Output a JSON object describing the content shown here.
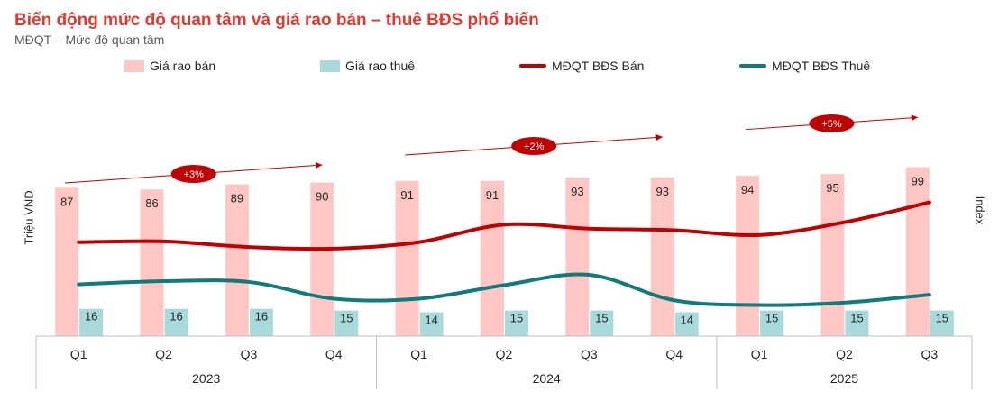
{
  "title": "Biến động mức độ quan tâm và giá rao bán – thuê BĐS phổ biến",
  "subtitle": "MĐQT – Mức độ quan tâm",
  "legend": [
    {
      "label": "Giá rao bán",
      "kind": "bar",
      "color": "#ffc7c3"
    },
    {
      "label": "Giá rao thuê",
      "kind": "bar",
      "color": "#a8dadb"
    },
    {
      "label": "MĐQT BĐS Bán",
      "kind": "line",
      "color": "#c00000"
    },
    {
      "label": "MĐQT BĐS Thuê",
      "kind": "line",
      "color": "#117a7a"
    }
  ],
  "chart_data": {
    "type": "bar",
    "ylabel_left": "Triệu VND",
    "ylabel_right": "Index",
    "categories": [
      "Q1",
      "Q2",
      "Q3",
      "Q4",
      "Q1",
      "Q2",
      "Q3",
      "Q4",
      "Q1",
      "Q2",
      "Q3"
    ],
    "groups": [
      {
        "label": "2023",
        "span": 4
      },
      {
        "label": "2024",
        "span": 4
      },
      {
        "label": "2025",
        "span": 3
      }
    ],
    "series": [
      {
        "name": "Giá rao bán",
        "type": "bar",
        "color": "#ffc7c3",
        "values": [
          87,
          86,
          89,
          90,
          91,
          91,
          93,
          93,
          94,
          95,
          99
        ]
      },
      {
        "name": "Giá rao thuê",
        "type": "bar",
        "color": "#a8dadb",
        "values": [
          16,
          16,
          16,
          15,
          14,
          15,
          15,
          14,
          15,
          15,
          15
        ]
      },
      {
        "name": "MĐQT BĐS Bán",
        "type": "line",
        "color": "#c00000",
        "values": [
          118,
          119,
          112,
          110,
          118,
          140,
          135,
          133,
          127,
          143,
          168
        ]
      },
      {
        "name": "MĐQT BĐS Thuê",
        "type": "line",
        "color": "#117a7a",
        "values": [
          65,
          69,
          68,
          47,
          47,
          64,
          77,
          45,
          39,
          42,
          52
        ]
      }
    ],
    "ylim_left": [
      0,
      140
    ],
    "ylim_right": [
      0,
      300
    ],
    "annotations": [
      {
        "label": "+3%",
        "year": "2023"
      },
      {
        "label": "+2%",
        "year": "2024"
      },
      {
        "label": "+5%",
        "year": "2025"
      }
    ],
    "annotation_color": "#c00000",
    "grid": false,
    "legend_position": "top"
  }
}
